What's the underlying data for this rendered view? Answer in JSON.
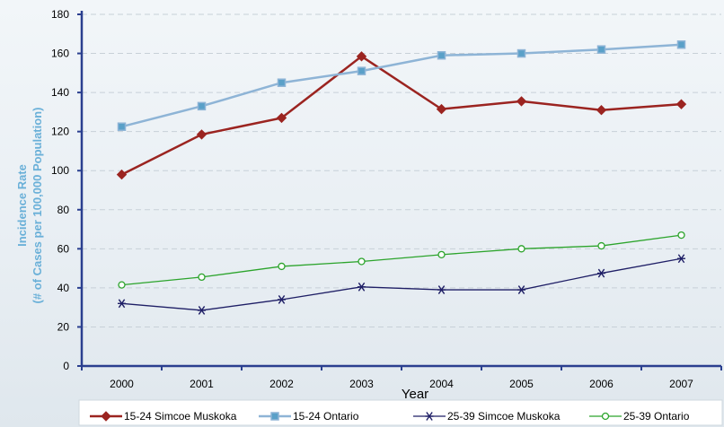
{
  "chart_data": {
    "type": "line",
    "xlabel": "Year",
    "ylabel": [
      "Incidence Rate",
      "(# of Cases per 100,000 Population)"
    ],
    "categories": [
      "2000",
      "2001",
      "2002",
      "2003",
      "2004",
      "2005",
      "2006",
      "2007"
    ],
    "ylim": [
      0,
      180
    ],
    "yticks": [
      0,
      20,
      40,
      60,
      80,
      100,
      120,
      140,
      160,
      180
    ],
    "grid": "horizontal dashed",
    "legend_position": "bottom",
    "series": [
      {
        "name": "15-24 Simcoe Muskoka",
        "color": "#9b2420",
        "marker": "diamond",
        "values": [
          98,
          118.5,
          127,
          158.5,
          131.5,
          135.5,
          131,
          134
        ]
      },
      {
        "name": "15-24 Ontario",
        "color": "#8eb4d6",
        "marker": "square",
        "values": [
          122.5,
          133,
          145,
          151,
          159,
          160,
          162,
          164.5
        ]
      },
      {
        "name": "25-39 Simcoe Muskoka",
        "color": "#1f1f66",
        "marker": "asterisk",
        "values": [
          32,
          28.5,
          34,
          40.5,
          39,
          39,
          47.5,
          55
        ]
      },
      {
        "name": "25-39 Ontario",
        "color": "#2ca42c",
        "marker": "circle",
        "values": [
          41.5,
          45.5,
          51,
          53.5,
          57,
          60,
          61.5,
          67
        ]
      }
    ]
  }
}
